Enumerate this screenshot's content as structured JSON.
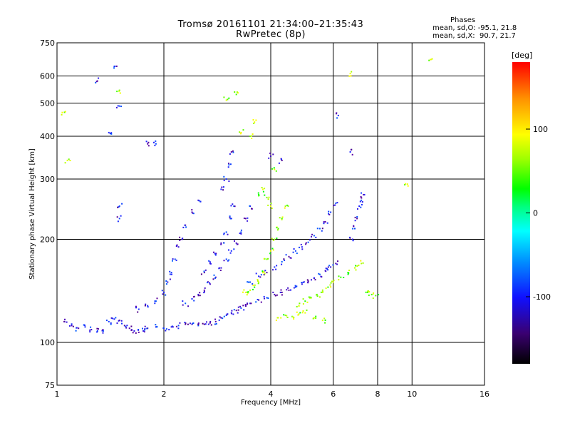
{
  "header": {
    "title_line1": "Tromsø 20161101 21:34:00–21:35:43",
    "title_line2": "RwPretec (8p)"
  },
  "phases_info": {
    "heading": "Phases",
    "line_o": "mean, sd,O: -95.1, 21.8",
    "line_x": "mean, sd,X:  90.7, 21.7"
  },
  "colors": {
    "colormap": [
      "#000000",
      "#2b0049",
      "#5a00a0",
      "#2020ff",
      "#0060ff",
      "#00b0ff",
      "#00ffff",
      "#00ff60",
      "#00ff00",
      "#b0ff00",
      "#ffff00",
      "#ffa000",
      "#ff0000"
    ]
  },
  "chart_data": {
    "type": "scatter",
    "xlabel": "Frequency [MHz]",
    "ylabel": "Stationary phase Virtual Height [km]",
    "x_scale": "log",
    "y_scale": "log",
    "xlim": [
      1,
      16
    ],
    "ylim": [
      75,
      750
    ],
    "x_ticks": [
      1,
      2,
      4,
      6,
      8,
      10,
      16
    ],
    "x_tick_labels": [
      "1",
      "2",
      "4",
      "6",
      "8",
      "10",
      "16"
    ],
    "y_ticks": [
      75,
      100,
      200,
      300,
      400,
      500,
      600,
      750
    ],
    "y_tick_labels": [
      "75",
      "100",
      "200",
      "300",
      "400",
      "500",
      "600",
      "750"
    ],
    "grid": true,
    "colorbar": {
      "label": "[deg]",
      "range": [
        -180,
        180
      ],
      "ticks": [
        100,
        0,
        -100
      ],
      "tick_labels": [
        "100",
        "0",
        "-100"
      ]
    },
    "series": [
      {
        "name": "O",
        "color_value_deg": -95,
        "points": [
          [
            1.05,
            115
          ],
          [
            1.1,
            112
          ],
          [
            1.15,
            110
          ],
          [
            1.2,
            111
          ],
          [
            1.25,
            109
          ],
          [
            1.3,
            108
          ],
          [
            1.35,
            108
          ],
          [
            1.4,
            115
          ],
          [
            1.45,
            117
          ],
          [
            1.5,
            116
          ],
          [
            1.55,
            112
          ],
          [
            1.6,
            110
          ],
          [
            1.65,
            108
          ],
          [
            1.7,
            107
          ],
          [
            1.75,
            108
          ],
          [
            1.8,
            110
          ],
          [
            1.9,
            111
          ],
          [
            2.0,
            110
          ],
          [
            2.1,
            111
          ],
          [
            2.2,
            112
          ],
          [
            2.3,
            113
          ],
          [
            2.4,
            113
          ],
          [
            2.5,
            112
          ],
          [
            2.6,
            113
          ],
          [
            2.7,
            114
          ],
          [
            2.8,
            115
          ],
          [
            2.9,
            118
          ],
          [
            3.0,
            120
          ],
          [
            3.1,
            122
          ],
          [
            3.2,
            124
          ],
          [
            3.3,
            126
          ],
          [
            3.4,
            128
          ],
          [
            3.5,
            130
          ],
          [
            3.7,
            133
          ],
          [
            3.9,
            135
          ],
          [
            4.1,
            138
          ],
          [
            4.3,
            140
          ],
          [
            4.5,
            142
          ],
          [
            4.7,
            145
          ],
          [
            4.9,
            148
          ],
          [
            5.1,
            151
          ],
          [
            5.3,
            154
          ],
          [
            5.5,
            158
          ],
          [
            5.7,
            162
          ],
          [
            5.9,
            166
          ],
          [
            6.1,
            170
          ],
          [
            1.7,
            125
          ],
          [
            1.8,
            128
          ],
          [
            1.9,
            132
          ],
          [
            2.0,
            140
          ],
          [
            2.05,
            150
          ],
          [
            2.1,
            160
          ],
          [
            2.15,
            175
          ],
          [
            2.2,
            190
          ],
          [
            2.25,
            200
          ],
          [
            2.3,
            220
          ],
          [
            2.4,
            240
          ],
          [
            2.5,
            260
          ],
          [
            2.3,
            130
          ],
          [
            2.4,
            134
          ],
          [
            2.5,
            138
          ],
          [
            2.6,
            142
          ],
          [
            2.7,
            148
          ],
          [
            2.8,
            155
          ],
          [
            2.9,
            165
          ],
          [
            3.0,
            175
          ],
          [
            3.1,
            185
          ],
          [
            3.2,
            195
          ],
          [
            3.3,
            210
          ],
          [
            3.4,
            230
          ],
          [
            3.5,
            250
          ],
          [
            2.6,
            160
          ],
          [
            2.7,
            170
          ],
          [
            2.8,
            180
          ],
          [
            2.9,
            195
          ],
          [
            3.0,
            210
          ],
          [
            3.1,
            230
          ],
          [
            3.15,
            250
          ],
          [
            2.9,
            280
          ],
          [
            3.0,
            300
          ],
          [
            3.05,
            330
          ],
          [
            3.1,
            360
          ],
          [
            3.5,
            150
          ],
          [
            3.7,
            156
          ],
          [
            3.9,
            160
          ],
          [
            4.1,
            166
          ],
          [
            4.3,
            172
          ],
          [
            4.5,
            178
          ],
          [
            4.7,
            185
          ],
          [
            4.9,
            190
          ],
          [
            5.1,
            196
          ],
          [
            5.3,
            205
          ],
          [
            5.5,
            215
          ],
          [
            5.7,
            225
          ],
          [
            5.9,
            240
          ],
          [
            6.1,
            255
          ],
          [
            6.8,
            200
          ],
          [
            6.9,
            215
          ],
          [
            7.0,
            230
          ],
          [
            7.1,
            250
          ],
          [
            7.2,
            260
          ],
          [
            7.3,
            270
          ],
          [
            1.3,
            580
          ],
          [
            1.45,
            640
          ],
          [
            1.5,
            490
          ],
          [
            1.5,
            250
          ],
          [
            1.5,
            230
          ],
          [
            1.4,
            410
          ],
          [
            1.8,
            380
          ],
          [
            1.9,
            380
          ],
          [
            4.0,
            350
          ],
          [
            4.3,
            340
          ],
          [
            6.7,
            360
          ],
          [
            6.2,
            460
          ]
        ]
      },
      {
        "name": "X",
        "color_value_deg": 91,
        "points": [
          [
            3.4,
            140
          ],
          [
            3.5,
            142
          ],
          [
            3.6,
            145
          ],
          [
            3.7,
            150
          ],
          [
            3.8,
            160
          ],
          [
            3.9,
            175
          ],
          [
            4.0,
            185
          ],
          [
            4.1,
            200
          ],
          [
            4.2,
            215
          ],
          [
            4.3,
            230
          ],
          [
            4.4,
            250
          ],
          [
            4.8,
            128
          ],
          [
            5.0,
            132
          ],
          [
            5.2,
            135
          ],
          [
            5.4,
            138
          ],
          [
            5.6,
            140
          ],
          [
            5.8,
            145
          ],
          [
            6.0,
            150
          ],
          [
            6.3,
            155
          ],
          [
            6.6,
            160
          ],
          [
            6.9,
            165
          ],
          [
            7.2,
            170
          ],
          [
            7.5,
            140
          ],
          [
            7.7,
            138
          ],
          [
            7.9,
            137
          ],
          [
            4.2,
            118
          ],
          [
            4.4,
            120
          ],
          [
            4.6,
            119
          ],
          [
            4.8,
            121
          ],
          [
            5.0,
            122
          ],
          [
            5.3,
            118
          ],
          [
            5.6,
            116
          ],
          [
            3.7,
            270
          ],
          [
            3.8,
            280
          ],
          [
            3.9,
            265
          ],
          [
            4.0,
            250
          ],
          [
            3.3,
            410
          ],
          [
            3.5,
            400
          ],
          [
            3.6,
            440
          ],
          [
            4.1,
            320
          ],
          [
            1.05,
            470
          ],
          [
            1.07,
            340
          ],
          [
            1.5,
            545
          ],
          [
            3.0,
            510
          ],
          [
            3.2,
            530
          ],
          [
            9.7,
            290
          ],
          [
            11.3,
            670
          ],
          [
            6.7,
            610
          ]
        ]
      }
    ]
  }
}
